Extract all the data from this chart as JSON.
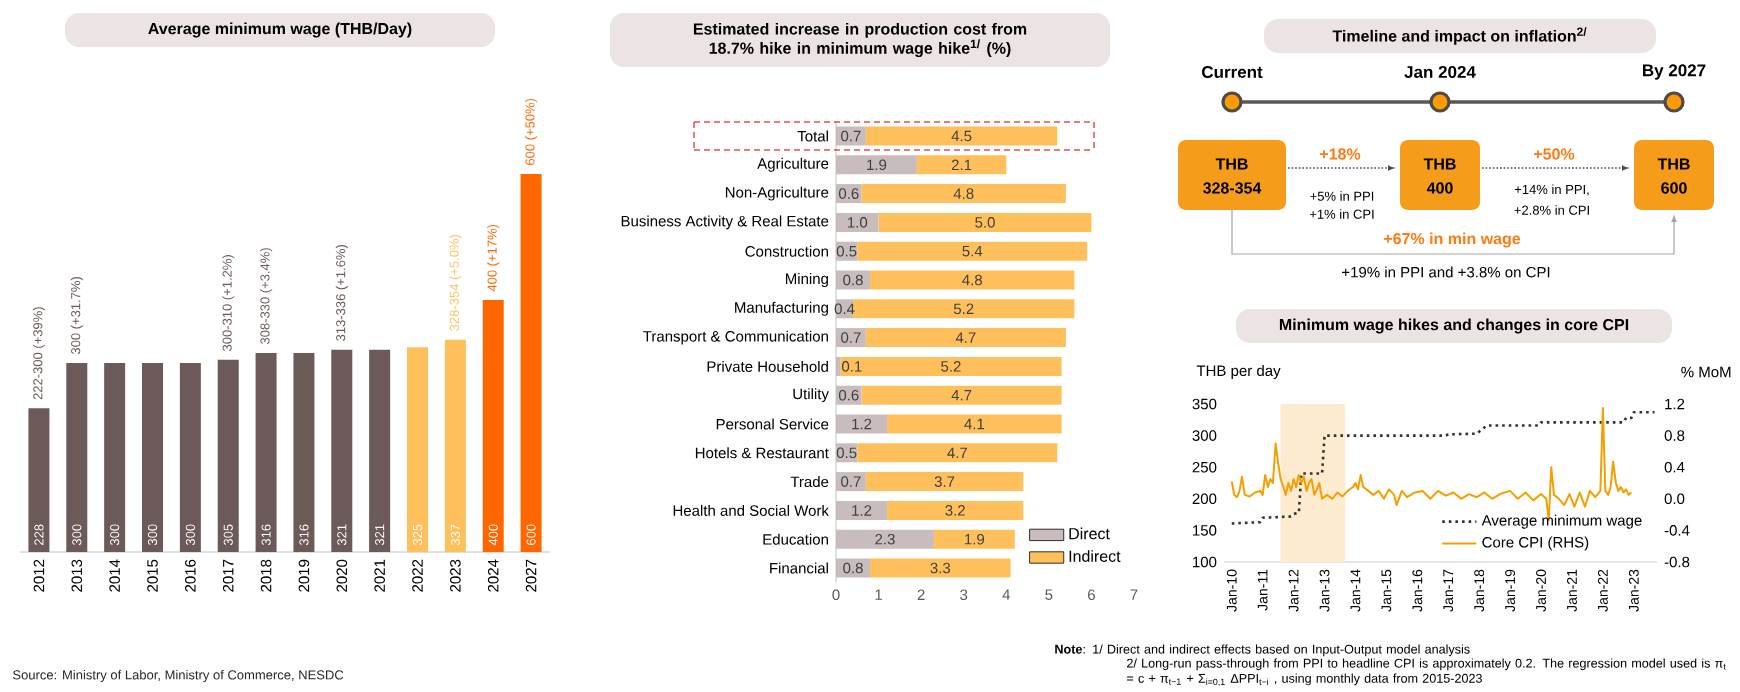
{
  "chart_data": [
    {
      "type": "bar",
      "title": "Average minimum wage (THB/Day)",
      "categories": [
        "2012",
        "2013",
        "2014",
        "2015",
        "2016",
        "2017",
        "2018",
        "2019",
        "2020",
        "2021",
        "2022",
        "2023",
        "2024",
        "2027"
      ],
      "values": [
        228,
        300,
        300,
        300,
        300,
        305,
        316,
        316,
        321,
        321,
        325,
        337,
        400,
        600
      ],
      "colors": [
        "#6b5a57",
        "#6b5a57",
        "#6b5a57",
        "#6b5a57",
        "#6b5a57",
        "#6b5a57",
        "#6b5a57",
        "#6b5a57",
        "#6b5a57",
        "#6b5a57",
        "#ffc05c",
        "#ffc05c",
        "#ff6600",
        "#ff6600"
      ],
      "data_labels": true,
      "tick_labels": "x",
      "annotations": [
        {
          "text": "222-300 (+39%)",
          "x": "2012",
          "y": 228
        },
        {
          "text": "300 (+31.7%)",
          "x": "2013",
          "y": 300
        },
        {
          "text": "300-310 (+1.2%)",
          "x": "2017",
          "y": 305
        },
        {
          "text": "308-330 (+3.4%)",
          "x": "2018",
          "y": 316
        },
        {
          "text": "313-336 (+1.6%)",
          "x": "2020",
          "y": 321
        },
        {
          "text": "328-354 (+5.0%)",
          "x": "2023",
          "y": 337
        },
        {
          "text": "400 (+17%)",
          "x": "2024",
          "y": 400
        },
        {
          "text": "600 (+50%)",
          "x": "2027",
          "y": 600
        },
        "Source: Ministry of Labor, Ministry of Commerce, NESDC"
      ]
    },
    {
      "type": "bar",
      "orientation": "horizontal",
      "stacked": true,
      "title": "Estimated increase in production cost from 18.7% hike in minimum wage hike$^{1/}$ (%)",
      "categories": [
        "Total",
        "Agriculture",
        "Non-Agriculture",
        "Business Activity & Real Estate",
        "Construction",
        "Mining",
        "Manufacturing",
        "Transport & Communication",
        "Private Household",
        "Utility",
        "Personal Service",
        "Hotels & Restaurant",
        "Trade",
        "Health and Social Work",
        "Education",
        "Financial"
      ],
      "series": [
        {
          "name": "Direct",
          "color": "#c8bcbc",
          "values": [
            0.7,
            1.9,
            0.6,
            1.0,
            0.5,
            0.8,
            0.4,
            0.7,
            0.1,
            0.6,
            1.2,
            0.5,
            0.7,
            1.2,
            2.3,
            0.8
          ],
          "value_labels": [
            "0.7",
            "1.9",
            "0.6",
            "1.0",
            "0.5",
            "0.8",
            "0.4",
            "0.7",
            "0.1",
            "0.6",
            "1.2",
            "0.5",
            "0.7",
            "1.2",
            "2.3",
            "0.8"
          ]
        },
        {
          "name": "Indirect",
          "color": "#ffc05c",
          "values": [
            4.5,
            2.1,
            4.8,
            5.0,
            5.4,
            4.8,
            5.2,
            4.7,
            5.2,
            4.7,
            4.1,
            4.7,
            3.7,
            3.2,
            1.9,
            3.3
          ],
          "value_labels": [
            "4.5",
            "2.1",
            "4.8",
            "5.0",
            "5.4",
            "4.8",
            "5.2",
            "4.7",
            "5.2",
            "4.7",
            "4.1",
            "4.7",
            "3.7",
            "3.2",
            "1.9",
            "3.3"
          ]
        }
      ],
      "xlim": [
        0,
        7
      ],
      "xticks": [
        0,
        1,
        2,
        3,
        4,
        5,
        6,
        7
      ],
      "legend": "bottom right",
      "annotations": [
        "**Note**: 1/ Direct and indirect effects based on Input-Output model analysis",
        "2/ Long-run pass-through from PPI to headline CPI is approximately 0.2. The regression model used is π$_{t}$ = c + π$_{t−1}$ + Σ$_{i=0,1}$ ΔPPI$_{t−i}$ , using monthly data from 2015-2023"
      ]
    },
    {
      "type": "other",
      "title": "Timeline and impact on inflation$^{2/}$",
      "annotations": [
        "Current",
        "Jan 2024",
        "By 2027",
        "THB",
        "328-354",
        "THB",
        "400",
        "THB",
        "600",
        "+18%",
        "+5% in PPI",
        "+1% in CPI",
        "+50%",
        "+14% in PPI,",
        "+2.8% in CPI",
        "+67%  in min wage",
        "+19% in PPI and +3.8% on CPI"
      ]
    },
    {
      "type": "line",
      "title": "Minimum wage hikes and changes in core CPI",
      "ylabel": "THB per day",
      "y2label": "% MoM",
      "xlim": [
        "2009-10",
        "2023-10"
      ],
      "xticks": [
        {
          "value": "2010-01",
          "label": "Jan-10"
        },
        {
          "value": "2011-01",
          "label": "Jan-11"
        },
        {
          "value": "2012-01",
          "label": "Jan-12"
        },
        {
          "value": "2013-01",
          "label": "Jan-13"
        },
        {
          "value": "2014-01",
          "label": "Jan-14"
        },
        {
          "value": "2015-01",
          "label": "Jan-15"
        },
        {
          "value": "2016-01",
          "label": "Jan-16"
        },
        {
          "value": "2017-01",
          "label": "Jan-17"
        },
        {
          "value": "2018-01",
          "label": "Jan-18"
        },
        {
          "value": "2019-01",
          "label": "Jan-19"
        },
        {
          "value": "2020-01",
          "label": "Jan-20"
        },
        {
          "value": "2021-01",
          "label": "Jan-21"
        },
        {
          "value": "2022-01",
          "label": "Jan-22"
        },
        {
          "value": "2023-01",
          "label": "Jan-23"
        }
      ],
      "ylim": [
        100,
        350
      ],
      "yticks": [
        100,
        150,
        200,
        250,
        300,
        350
      ],
      "y2lim": [
        -0.8,
        1.2
      ],
      "y2ticks": [
        -0.8,
        -0.4,
        {
          "value": 0,
          "label": "0.0"
        },
        0.4,
        0.8,
        1.2
      ],
      "legend": "bottom right",
      "bands": [
        {
          "axis": "x",
          "from": "2011-08",
          "to": "2013-09",
          "color": "#fdebd0"
        }
      ],
      "series": [
        {
          "name": "Average minimum wage",
          "color": "#333333",
          "line_style": "dotted",
          "x": [
            "2010-01",
            "2010-12",
            "2011-01",
            "2011-12",
            "2012-01",
            "2012-03",
            "2012-04",
            "2012-12",
            "2013-01",
            "2016-12",
            "2017-01",
            "2017-12",
            "2018-04",
            "2019-12",
            "2020-01",
            "2022-09",
            "2022-10",
            "2022-12",
            "2023-01",
            "2023-09"
          ],
          "values": [
            161,
            163,
            170,
            172,
            176,
            178,
            240,
            240,
            300,
            300,
            302,
            303,
            316,
            316,
            321,
            321,
            328,
            328,
            337,
            337
          ]
        },
        {
          "name": "Core CPI (RHS)",
          "color": "#f5a000",
          "line_style": "solid",
          "axis": "y2",
          "x": [
            "2010-01",
            "2010-02",
            "2010-03",
            "2010-04",
            "2010-05",
            "2010-06",
            "2010-08",
            "2010-10",
            "2010-12",
            "2011-01",
            "2011-02",
            "2011-03",
            "2011-04",
            "2011-05",
            "2011-06",
            "2011-07",
            "2011-08",
            "2011-09",
            "2011-10",
            "2011-11",
            "2011-12",
            "2012-01",
            "2012-02",
            "2012-03",
            "2012-04",
            "2012-05",
            "2012-06",
            "2012-07",
            "2012-08",
            "2012-09",
            "2012-10",
            "2012-11",
            "2012-12",
            "2013-02",
            "2013-04",
            "2013-06",
            "2013-08",
            "2013-10",
            "2013-12",
            "2014-01",
            "2014-02",
            "2014-03",
            "2014-04",
            "2014-06",
            "2014-08",
            "2014-10",
            "2014-12",
            "2015-02",
            "2015-04",
            "2015-05",
            "2015-07",
            "2015-09",
            "2015-12",
            "2016-03",
            "2016-06",
            "2016-09",
            "2016-12",
            "2017-03",
            "2017-06",
            "2017-09",
            "2017-12",
            "2018-03",
            "2018-06",
            "2018-09",
            "2019-01",
            "2019-04",
            "2019-07",
            "2019-10",
            "2020-01",
            "2020-03",
            "2020-04",
            "2020-05",
            "2020-06",
            "2020-08",
            "2020-10",
            "2020-12",
            "2021-02",
            "2021-04",
            "2021-06",
            "2021-08",
            "2021-10",
            "2021-12",
            "2022-01",
            "2022-02",
            "2022-03",
            "2022-04",
            "2022-05",
            "2022-06",
            "2022-07",
            "2022-08",
            "2022-09",
            "2022-10",
            "2022-11",
            "2022-12"
          ],
          "values": [
            0.22,
            0.05,
            0.02,
            0.1,
            0.28,
            0.05,
            0.03,
            0.08,
            0.1,
            0.05,
            0.3,
            0.15,
            0.25,
            0.2,
            0.7,
            0.45,
            0.25,
            0.15,
            0.05,
            0.2,
            0.1,
            0.25,
            0.15,
            0.3,
            0.2,
            0.28,
            0.1,
            0.2,
            0.25,
            0.05,
            0.12,
            0.2,
            0.0,
            0.05,
            0.0,
            0.08,
            0.03,
            0.1,
            0.15,
            0.2,
            0.12,
            0.3,
            0.15,
            0.1,
            0.05,
            0.1,
            0.0,
            0.12,
            0.05,
            -0.08,
            0.1,
            0.02,
            0.08,
            0.1,
            0.0,
            0.1,
            0.04,
            0.08,
            0.0,
            0.06,
            0.02,
            0.08,
            0.0,
            0.06,
            0.1,
            0.0,
            0.08,
            -0.02,
            0.06,
            0.0,
            -0.27,
            0.4,
            0.05,
            0.0,
            -0.08,
            0.06,
            -0.1,
            0.08,
            -0.1,
            0.1,
            0.02,
            0.1,
            1.15,
            0.1,
            0.05,
            0.15,
            0.47,
            0.2,
            0.1,
            0.15,
            0.08,
            0.12,
            0.05,
            0.08
          ]
        }
      ]
    }
  ]
}
